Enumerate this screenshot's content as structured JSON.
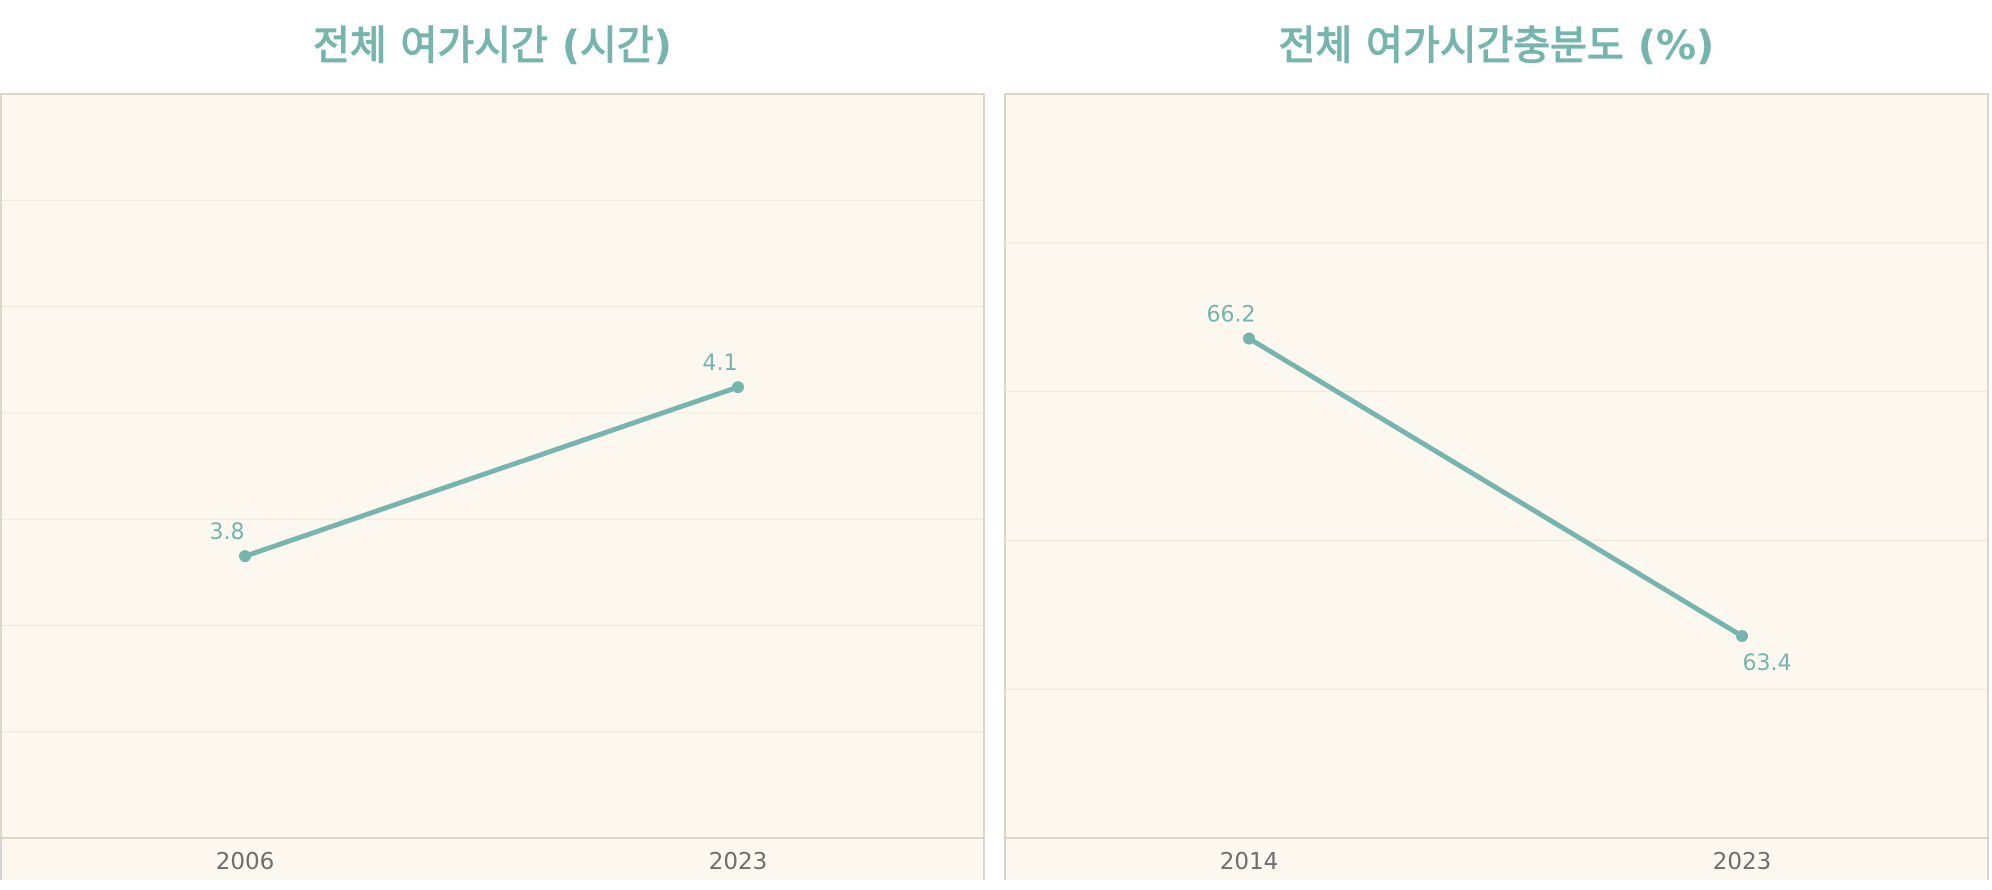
{
  "colors": {
    "accent": "#76b5ae",
    "plot_bg": "#fcf8ef",
    "grid": "#eee8da",
    "border": "#c9bfa9",
    "axis_line": "#c8c8c8",
    "tick_text": "#6e6e6e"
  },
  "chart_data": [
    {
      "type": "line",
      "title": "전체 여가시간 (시간)",
      "xlabel": "",
      "ylabel": "",
      "categories": [
        "2006",
        "2023"
      ],
      "series": [
        {
          "values": [
            3.8,
            4.1
          ],
          "value_labels": [
            "3.8",
            "4.1"
          ]
        }
      ],
      "ylim": [
        3.3,
        4.62
      ],
      "grid": true,
      "y_ticks_visible": false,
      "label_positions": [
        "above",
        "above"
      ]
    },
    {
      "type": "line",
      "title": "전체 여가시간충분도 (%)",
      "xlabel": "",
      "ylabel": "",
      "categories": [
        "2014",
        "2023"
      ],
      "series": [
        {
          "values": [
            66.2,
            63.4
          ],
          "value_labels": [
            "66.2",
            "63.4"
          ]
        }
      ],
      "ylim": [
        61.5,
        68.5
      ],
      "grid": true,
      "y_ticks_visible": false,
      "label_positions": [
        "above",
        "below"
      ]
    }
  ]
}
